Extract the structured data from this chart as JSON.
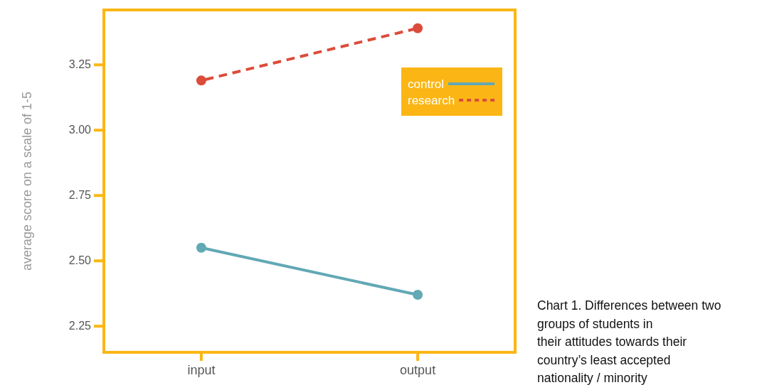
{
  "chart_data": {
    "type": "line",
    "ylabel": "average score on a scale of 1-5",
    "categories": [
      "input",
      "output"
    ],
    "series": [
      {
        "name": "control",
        "color": "#62a8b5",
        "values": [
          2.55,
          2.37
        ],
        "line_style": "solid"
      },
      {
        "name": "research",
        "color": "#db4c3a",
        "values": [
          3.19,
          3.39
        ],
        "line_style": "dashed"
      }
    ],
    "ylim": [
      2.15,
      3.46
    ],
    "yticks": [
      {
        "value": 2.25,
        "label": "2.25"
      },
      {
        "value": 2.5,
        "label": "2.50"
      },
      {
        "value": 2.75,
        "label": "2.75"
      },
      {
        "value": 3,
        "label": "3.00"
      },
      {
        "value": 3.25,
        "label": "3.25"
      }
    ],
    "grid": false,
    "legend": "top right",
    "marker": "circle",
    "annotations": [
      "Chart 1. Differences between two\ngroups of students in\ntheir attitudes towards their\ncountry’s least accepted\nnationality / minority"
    ]
  }
}
